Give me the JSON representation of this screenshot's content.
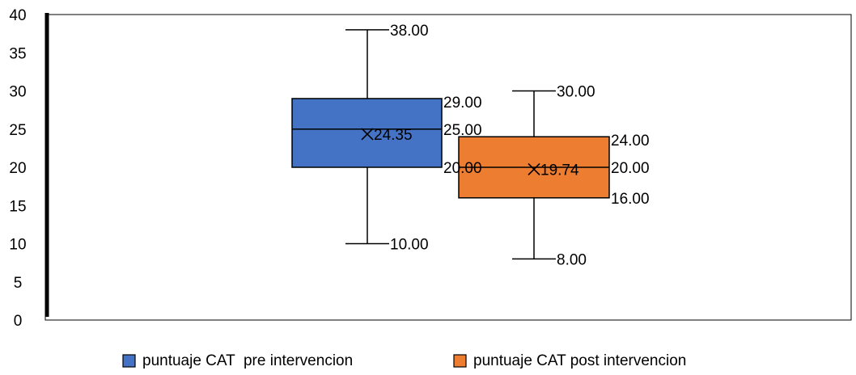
{
  "chart_data": {
    "type": "boxplot",
    "ylim": [
      0,
      40
    ],
    "y_ticks": [
      "0",
      "5",
      "10",
      "15",
      "20",
      "25",
      "30",
      "35",
      "40"
    ],
    "grid": false,
    "legend_position": "bottom",
    "series": [
      {
        "name": "puntuaje CAT  pre intervencion",
        "color": "#4472C4",
        "min": 10,
        "q1": 20,
        "median": 25,
        "q3": 29,
        "max": 38,
        "mean": 24.35,
        "labels": {
          "min": "10.00",
          "q1": "20.00",
          "median": "25.00",
          "q3": "29.00",
          "max": "38.00",
          "mean": "24.35"
        }
      },
      {
        "name": "puntuaje CAT post intervencion",
        "color": "#ED7D31",
        "min": 8,
        "q1": 16,
        "median": 20,
        "q3": 24,
        "max": 30,
        "mean": 19.74,
        "labels": {
          "min": "8.00",
          "q1": "16.00",
          "median": "20.00",
          "q3": "24.00",
          "max": "30.00",
          "mean": "19.74"
        }
      }
    ]
  }
}
